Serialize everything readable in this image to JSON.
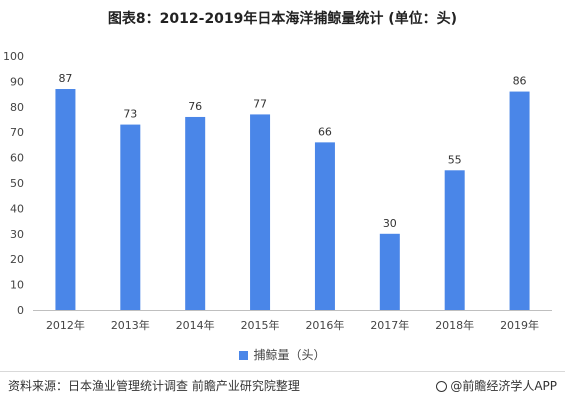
{
  "chart_data": {
    "type": "bar",
    "title": "图表8：2012-2019年日本海洋捕鲸量统计 (单位：头)",
    "categories": [
      "2012年",
      "2013年",
      "2014年",
      "2015年",
      "2016年",
      "2017年",
      "2018年",
      "2019年"
    ],
    "series": [
      {
        "name": "捕鲸量（头）",
        "values": [
          87,
          73,
          76,
          77,
          66,
          30,
          55,
          86
        ]
      }
    ],
    "ylim": [
      0,
      100
    ],
    "yticks": [
      0,
      10,
      20,
      30,
      40,
      50,
      60,
      70,
      80,
      90,
      100
    ],
    "grid": false,
    "legend_position": "bottom-center",
    "bar_color": "#4a86e8"
  },
  "footer": {
    "source": "资料来源：日本渔业管理统计调查 前瞻产业研究院整理",
    "brand": "@前瞻经济学人APP"
  }
}
